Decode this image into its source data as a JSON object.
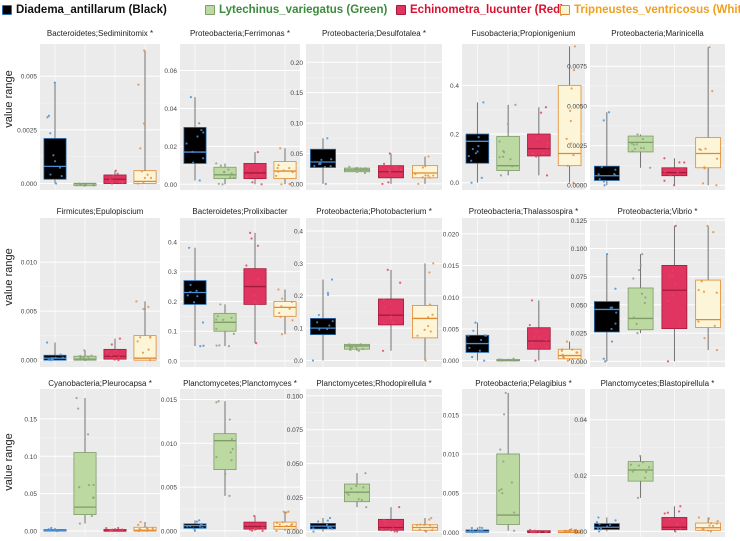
{
  "legend": [
    {
      "label": "Diadema_antillarum (Black)",
      "text_color": "#111111",
      "fill": "#000000",
      "stroke": "#2a6fb0",
      "dot": "#4a90d9"
    },
    {
      "label": "Lytechinus_variegatus (Green)",
      "text_color": "#3c8a3c",
      "fill": "#bcd9a2",
      "stroke": "#7f9c6a",
      "dot": "#8aa37a"
    },
    {
      "label": "Echinometra_lucunter (Red)",
      "text_color": "#d8102f",
      "fill": "#e03560",
      "stroke": "#a41a3a",
      "dot": "#e8425e"
    },
    {
      "label": "Tripneustes_ventricosus (White)",
      "text_color": "#f0a020",
      "fill": "#fcf5d8",
      "stroke": "#e08a30",
      "dot": "#e89040"
    }
  ],
  "y_axis_label": "value range",
  "chart_data": [
    {
      "type": "box",
      "title": "Bacteroidetes;Sediminitomix *",
      "yticks": [
        0.0,
        0.0025,
        0.005
      ],
      "ytick_labels": [
        "0.000",
        "0.0025",
        "0.005"
      ],
      "ylim": [
        -0.0003,
        0.0065
      ],
      "series": [
        {
          "q1": 0.0002,
          "median": 0.0008,
          "q3": 0.0021,
          "lo": 0.0,
          "hi": 0.0047
        },
        {
          "q1": -0.0001,
          "median": 0.0,
          "q3": 0.0,
          "lo": -0.0001,
          "hi": 0.0
        },
        {
          "q1": 0.0,
          "median": 0.0002,
          "q3": 0.0004,
          "lo": 0.0,
          "hi": 0.0006
        },
        {
          "q1": 0.0,
          "median": 0.0001,
          "q3": 0.0006,
          "lo": 0.0,
          "hi": 0.0062
        }
      ]
    },
    {
      "type": "box",
      "title": "Proteobacteria;Ferrimonas *",
      "yticks": [
        0.0,
        0.02,
        0.04,
        0.06
      ],
      "ytick_labels": [
        "0.00",
        "0.02",
        "0.04",
        "0.06"
      ],
      "ylim": [
        -0.003,
        0.074
      ],
      "series": [
        {
          "q1": 0.011,
          "median": 0.017,
          "q3": 0.03,
          "lo": 0.002,
          "hi": 0.046
        },
        {
          "q1": 0.003,
          "median": 0.005,
          "q3": 0.009,
          "lo": 0.0,
          "hi": 0.011
        },
        {
          "q1": 0.003,
          "median": 0.006,
          "q3": 0.011,
          "lo": 0.0,
          "hi": 0.017
        },
        {
          "q1": 0.003,
          "median": 0.007,
          "q3": 0.012,
          "lo": 0.0,
          "hi": 0.019
        }
      ]
    },
    {
      "type": "box",
      "title": "Proteobacteria;Desulfotalea *",
      "yticks": [
        0.0,
        0.05,
        0.1,
        0.15,
        0.2
      ],
      "ytick_labels": [
        "0.00",
        "0.05",
        "0.10",
        "0.15",
        "0.20"
      ],
      "ylim": [
        -0.01,
        0.23
      ],
      "series": [
        {
          "q1": 0.027,
          "median": 0.036,
          "q3": 0.057,
          "lo": 0.0,
          "hi": 0.075
        },
        {
          "q1": 0.02,
          "median": 0.023,
          "q3": 0.026,
          "lo": 0.018,
          "hi": 0.028
        },
        {
          "q1": 0.01,
          "median": 0.02,
          "q3": 0.03,
          "lo": 0.0,
          "hi": 0.05
        },
        {
          "q1": 0.01,
          "median": 0.018,
          "q3": 0.03,
          "lo": 0.0,
          "hi": 0.045
        }
      ]
    },
    {
      "type": "box",
      "title": "Fusobacteria;Propionigenium",
      "yticks": [
        0.0,
        0.2,
        0.4
      ],
      "ytick_labels": [
        "0.0",
        "0.2",
        "0.4"
      ],
      "ylim": [
        -0.03,
        0.57
      ],
      "series": [
        {
          "q1": 0.08,
          "median": 0.17,
          "q3": 0.2,
          "lo": 0.0,
          "hi": 0.33
        },
        {
          "q1": 0.05,
          "median": 0.07,
          "q3": 0.19,
          "lo": 0.03,
          "hi": 0.32
        },
        {
          "q1": 0.11,
          "median": 0.14,
          "q3": 0.2,
          "lo": 0.03,
          "hi": 0.31
        },
        {
          "q1": 0.07,
          "median": 0.12,
          "q3": 0.4,
          "lo": 0.0,
          "hi": 0.56
        }
      ]
    },
    {
      "type": "box",
      "title": "Proteobacteria;Marinicella",
      "yticks": [
        0.0,
        0.0025,
        0.005,
        0.0075
      ],
      "ytick_labels": [
        "0.0000",
        "0.0025",
        "0.0050",
        "0.0075"
      ],
      "ylim": [
        -0.0003,
        0.0089
      ],
      "series": [
        {
          "q1": 0.0003,
          "median": 0.0006,
          "q3": 0.0012,
          "lo": 0.0,
          "hi": 0.0046
        },
        {
          "q1": 0.0021,
          "median": 0.0027,
          "q3": 0.0031,
          "lo": 0.0011,
          "hi": 0.0032
        },
        {
          "q1": 0.0006,
          "median": 0.0008,
          "q3": 0.0011,
          "lo": 0.0,
          "hi": 0.0017
        },
        {
          "q1": 0.0011,
          "median": 0.002,
          "q3": 0.003,
          "lo": 0.0,
          "hi": 0.0087
        }
      ]
    },
    {
      "type": "box",
      "title": "Firmicutes;Epulopiscium",
      "yticks": [
        0.0,
        0.005,
        0.01
      ],
      "ytick_labels": [
        "0.000",
        "0.005",
        "0.010"
      ],
      "ylim": [
        -0.0007,
        0.0145
      ],
      "series": [
        {
          "q1": 0.0,
          "median": 0.0002,
          "q3": 0.0005,
          "lo": 0.0,
          "hi": 0.0018
        },
        {
          "q1": 0.0,
          "median": 0.0001,
          "q3": 0.0004,
          "lo": 0.0,
          "hi": 0.001
        },
        {
          "q1": 0.0001,
          "median": 0.0004,
          "q3": 0.0011,
          "lo": 0.0,
          "hi": 0.0022
        },
        {
          "q1": 0.0,
          "median": 0.0002,
          "q3": 0.0025,
          "lo": 0.0,
          "hi": 0.006
        }
      ]
    },
    {
      "type": "box",
      "title": "Bacteroidetes;Prolixibacter",
      "yticks": [
        0.0,
        0.1,
        0.2,
        0.3,
        0.4
      ],
      "ytick_labels": [
        "0.0",
        "0.1",
        "0.2",
        "0.3",
        "0.4"
      ],
      "ylim": [
        -0.02,
        0.48
      ],
      "series": [
        {
          "q1": 0.19,
          "median": 0.23,
          "q3": 0.27,
          "lo": 0.05,
          "hi": 0.38
        },
        {
          "q1": 0.1,
          "median": 0.13,
          "q3": 0.16,
          "lo": 0.05,
          "hi": 0.19
        },
        {
          "q1": 0.19,
          "median": 0.25,
          "q3": 0.31,
          "lo": 0.06,
          "hi": 0.43
        },
        {
          "q1": 0.15,
          "median": 0.18,
          "q3": 0.2,
          "lo": 0.09,
          "hi": 0.24
        }
      ]
    },
    {
      "type": "box",
      "title": "Proteobacteria;Photobacterium *",
      "yticks": [
        0.0,
        0.1,
        0.2,
        0.3,
        0.4
      ],
      "ytick_labels": [
        "0.0",
        "0.1",
        "0.2",
        "0.3",
        "0.4"
      ],
      "ylim": [
        -0.02,
        0.44
      ],
      "series": [
        {
          "q1": 0.08,
          "median": 0.1,
          "q3": 0.13,
          "lo": 0.0,
          "hi": 0.25
        },
        {
          "q1": 0.035,
          "median": 0.045,
          "q3": 0.05,
          "lo": 0.03,
          "hi": 0.05
        },
        {
          "q1": 0.11,
          "median": 0.14,
          "q3": 0.19,
          "lo": 0.03,
          "hi": 0.28
        },
        {
          "q1": 0.07,
          "median": 0.13,
          "q3": 0.17,
          "lo": 0.0,
          "hi": 0.3
        }
      ]
    },
    {
      "type": "box",
      "title": "Proteobacteria;Thalassospira *",
      "yticks": [
        0.0,
        0.005,
        0.01,
        0.015,
        0.02
      ],
      "ytick_labels": [
        "0.000",
        "0.005",
        "0.010",
        "0.015",
        "0.020"
      ],
      "ylim": [
        -0.001,
        0.0225
      ],
      "series": [
        {
          "q1": 0.0013,
          "median": 0.0027,
          "q3": 0.004,
          "lo": 0.0,
          "hi": 0.006
        },
        {
          "q1": 0.0,
          "median": 0.0,
          "q3": 0.0002,
          "lo": 0.0,
          "hi": 0.0003
        },
        {
          "q1": 0.0018,
          "median": 0.0031,
          "q3": 0.0052,
          "lo": 0.0,
          "hi": 0.0095
        },
        {
          "q1": 0.0003,
          "median": 0.0008,
          "q3": 0.0018,
          "lo": 0.0,
          "hi": 0.003
        }
      ]
    },
    {
      "type": "box",
      "title": "Proteobacteria;Vibrio *",
      "yticks": [
        0.0,
        0.025,
        0.05,
        0.075,
        0.1,
        0.125
      ],
      "ytick_labels": [
        "0.000",
        "0.025",
        "0.050",
        "0.075",
        "0.100",
        "0.125"
      ],
      "ylim": [
        -0.005,
        0.127
      ],
      "series": [
        {
          "q1": 0.026,
          "median": 0.046,
          "q3": 0.053,
          "lo": 0.0,
          "hi": 0.095
        },
        {
          "q1": 0.028,
          "median": 0.038,
          "q3": 0.065,
          "lo": 0.025,
          "hi": 0.095
        },
        {
          "q1": 0.029,
          "median": 0.063,
          "q3": 0.085,
          "lo": 0.0,
          "hi": 0.12
        },
        {
          "q1": 0.03,
          "median": 0.037,
          "q3": 0.072,
          "lo": 0.01,
          "hi": 0.12
        }
      ]
    },
    {
      "type": "box",
      "title": "Cyanobacteria;Pleurocapsa *",
      "yticks": [
        0.0,
        0.05,
        0.1,
        0.15
      ],
      "ytick_labels": [
        "0.00",
        "0.05",
        "0.10",
        "0.15"
      ],
      "ylim": [
        -0.008,
        0.19
      ],
      "series": [
        {
          "q1": 0.0,
          "median": 0.001,
          "q3": 0.002,
          "lo": 0.0,
          "hi": 0.004
        },
        {
          "q1": 0.022,
          "median": 0.032,
          "q3": 0.105,
          "lo": 0.01,
          "hi": 0.178
        },
        {
          "q1": 0.0,
          "median": 0.0,
          "q3": 0.002,
          "lo": 0.0,
          "hi": 0.004
        },
        {
          "q1": 0.0,
          "median": 0.001,
          "q3": 0.005,
          "lo": 0.0,
          "hi": 0.012
        }
      ]
    },
    {
      "type": "box",
      "title": "Planctomycetes;Planctomyces *",
      "yticks": [
        0.0,
        0.005,
        0.01,
        0.015
      ],
      "ytick_labels": [
        "0.000",
        "0.005",
        "0.010",
        "0.015"
      ],
      "ylim": [
        -0.0007,
        0.0162
      ],
      "series": [
        {
          "q1": 0.0003,
          "median": 0.0006,
          "q3": 0.0008,
          "lo": 0.0,
          "hi": 0.0012
        },
        {
          "q1": 0.007,
          "median": 0.0103,
          "q3": 0.0111,
          "lo": 0.004,
          "hi": 0.0148
        },
        {
          "q1": 0.0002,
          "median": 0.0005,
          "q3": 0.001,
          "lo": 0.0,
          "hi": 0.0017
        },
        {
          "q1": 0.0002,
          "median": 0.0005,
          "q3": 0.001,
          "lo": 0.0,
          "hi": 0.0022
        }
      ]
    },
    {
      "type": "box",
      "title": "Planctomycetes;Rhodopirellula *",
      "yticks": [
        0.0,
        0.025,
        0.05,
        0.075,
        0.1
      ],
      "ytick_labels": [
        "0.000",
        "0.025",
        "0.050",
        "0.075",
        "0.100"
      ],
      "ylim": [
        -0.004,
        0.105
      ],
      "series": [
        {
          "q1": 0.002,
          "median": 0.004,
          "q3": 0.006,
          "lo": 0.0,
          "hi": 0.01
        },
        {
          "q1": 0.022,
          "median": 0.029,
          "q3": 0.035,
          "lo": 0.018,
          "hi": 0.043
        },
        {
          "q1": 0.001,
          "median": 0.003,
          "q3": 0.009,
          "lo": 0.0,
          "hi": 0.018
        },
        {
          "q1": 0.001,
          "median": 0.003,
          "q3": 0.005,
          "lo": 0.0,
          "hi": 0.01
        }
      ]
    },
    {
      "type": "box",
      "title": "Proteobacteria;Pelagibius *",
      "yticks": [
        0.0,
        0.005,
        0.01,
        0.015
      ],
      "ytick_labels": [
        "0.000",
        "0.005",
        "0.010",
        "0.015"
      ],
      "ylim": [
        -0.0006,
        0.0183
      ],
      "series": [
        {
          "q1": 0.0,
          "median": 0.0001,
          "q3": 0.0003,
          "lo": 0.0,
          "hi": 0.0006
        },
        {
          "q1": 0.001,
          "median": 0.0022,
          "q3": 0.01,
          "lo": 0.0002,
          "hi": 0.0178
        },
        {
          "q1": 0.0,
          "median": 0.0,
          "q3": 0.0002,
          "lo": 0.0,
          "hi": 0.0003
        },
        {
          "q1": 0.0,
          "median": 0.0,
          "q3": 0.0002,
          "lo": 0.0,
          "hi": 0.0004
        }
      ]
    },
    {
      "type": "box",
      "title": "Planctomycetes;Blastopirellula *",
      "yticks": [
        0.0,
        0.02,
        0.04
      ],
      "ytick_labels": [
        "0.00",
        "0.02",
        "0.04"
      ],
      "ylim": [
        -0.002,
        0.051
      ],
      "series": [
        {
          "q1": 0.0007,
          "median": 0.0015,
          "q3": 0.0028,
          "lo": 0.0,
          "hi": 0.005
        },
        {
          "q1": 0.018,
          "median": 0.022,
          "q3": 0.025,
          "lo": 0.012,
          "hi": 0.027
        },
        {
          "q1": 0.0006,
          "median": 0.0015,
          "q3": 0.005,
          "lo": 0.0,
          "hi": 0.009
        },
        {
          "q1": 0.0004,
          "median": 0.0013,
          "q3": 0.003,
          "lo": 0.0,
          "hi": 0.005
        }
      ]
    }
  ]
}
